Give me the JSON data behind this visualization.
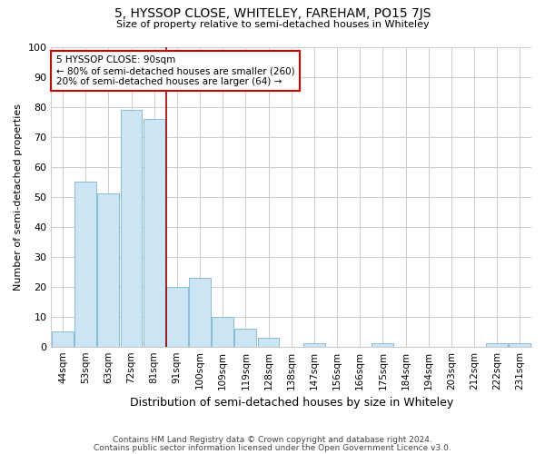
{
  "title": "5, HYSSOP CLOSE, WHITELEY, FAREHAM, PO15 7JS",
  "subtitle": "Size of property relative to semi-detached houses in Whiteley",
  "xlabel": "Distribution of semi-detached houses by size in Whiteley",
  "ylabel": "Number of semi-detached properties",
  "bins": [
    "44sqm",
    "53sqm",
    "63sqm",
    "72sqm",
    "81sqm",
    "91sqm",
    "100sqm",
    "109sqm",
    "119sqm",
    "128sqm",
    "138sqm",
    "147sqm",
    "156sqm",
    "166sqm",
    "175sqm",
    "184sqm",
    "194sqm",
    "203sqm",
    "212sqm",
    "222sqm",
    "231sqm"
  ],
  "counts": [
    5,
    55,
    51,
    79,
    76,
    20,
    23,
    10,
    6,
    3,
    0,
    1,
    0,
    0,
    1,
    0,
    0,
    0,
    0,
    1,
    1
  ],
  "bar_color": "#cce5f5",
  "bar_edge_color": "#8abcd4",
  "property_line_idx": 5,
  "property_line_color": "#990000",
  "annotation_line1": "5 HYSSOP CLOSE: 90sqm",
  "annotation_line2": "← 80% of semi-detached houses are smaller (260)",
  "annotation_line3": "20% of semi-detached houses are larger (64) →",
  "annotation_box_color": "#ffffff",
  "annotation_box_edge_color": "#cc0000",
  "ylim": [
    0,
    100
  ],
  "footer_line1": "Contains HM Land Registry data © Crown copyright and database right 2024.",
  "footer_line2": "Contains public sector information licensed under the Open Government Licence v3.0.",
  "background_color": "#ffffff",
  "grid_color": "#cccccc"
}
